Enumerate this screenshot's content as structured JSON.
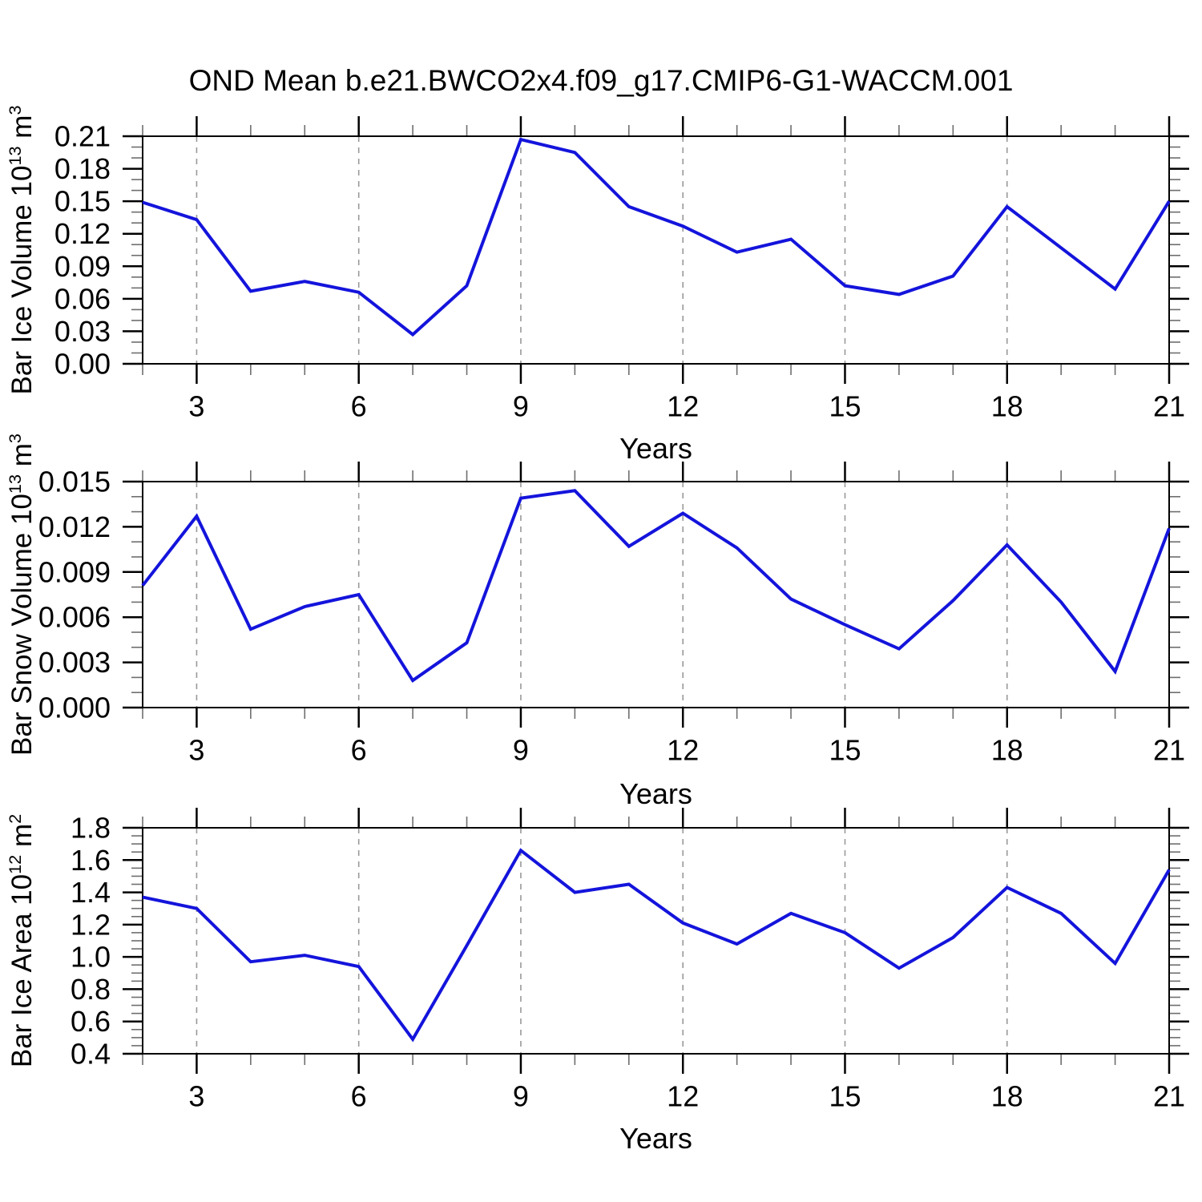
{
  "title": "OND Mean b.e21.BWCO2x4.f09_g17.CMIP6-G1-WACCM.001",
  "style": {
    "line_color": "#1414dc",
    "grid_color": "#999999",
    "axis_color": "#000000",
    "minor_tick_color": "#6e6e6e",
    "background": "#ffffff"
  },
  "chart_data": [
    {
      "type": "line",
      "panel": "bar-ice-volume",
      "ylabel": "Bar Ice Volume 10¹³ m³",
      "ylabel_parts": [
        "Bar Ice Volume 10",
        "13",
        " m",
        "3"
      ],
      "xlabel": "Years",
      "x": [
        2,
        3,
        4,
        5,
        6,
        7,
        8,
        9,
        10,
        11,
        12,
        13,
        14,
        15,
        16,
        17,
        18,
        19,
        20,
        21
      ],
      "values": [
        0.149,
        0.133,
        0.067,
        0.076,
        0.066,
        0.027,
        0.072,
        0.207,
        0.195,
        0.145,
        0.127,
        0.103,
        0.115,
        0.072,
        0.064,
        0.081,
        0.145,
        0.107,
        0.069,
        0.15
      ],
      "ylim": [
        0,
        0.21
      ],
      "ytick_values": [
        0,
        0.03,
        0.06,
        0.09,
        0.12,
        0.15,
        0.18,
        0.21
      ],
      "ytick_labels": [
        "0.00",
        "0.03",
        "0.06",
        "0.09",
        "0.12",
        "0.15",
        "0.18",
        "0.21"
      ],
      "yminor_step": 0.01,
      "xlim": [
        2,
        21
      ],
      "xtick_values": [
        3,
        6,
        9,
        12,
        15,
        18,
        21
      ],
      "xtick_labels": [
        "3",
        "6",
        "9",
        "12",
        "15",
        "18",
        "21"
      ],
      "xminor_step": 1,
      "grid_x": [
        3,
        6,
        9,
        12,
        15,
        18
      ],
      "grid": "vertical-dashed",
      "legend": "none"
    },
    {
      "type": "line",
      "panel": "bar-snow-volume",
      "ylabel": "Bar Snow Volume 10¹³ m³",
      "ylabel_parts": [
        "Bar Snow Volume 10",
        "13",
        " m",
        "3"
      ],
      "xlabel": "Years",
      "x": [
        2,
        3,
        4,
        5,
        6,
        7,
        8,
        9,
        10,
        11,
        12,
        13,
        14,
        15,
        16,
        17,
        18,
        19,
        20,
        21
      ],
      "values": [
        0.0081,
        0.0127,
        0.0052,
        0.0067,
        0.0075,
        0.0018,
        0.0043,
        0.0139,
        0.0144,
        0.0107,
        0.0129,
        0.0106,
        0.0072,
        0.0055,
        0.0039,
        0.0071,
        0.0108,
        0.007,
        0.0024,
        0.0119
      ],
      "ylim": [
        0,
        0.015
      ],
      "ytick_values": [
        0,
        0.003,
        0.006,
        0.009,
        0.012,
        0.015
      ],
      "ytick_labels": [
        "0.000",
        "0.003",
        "0.006",
        "0.009",
        "0.012",
        "0.015"
      ],
      "yminor_step": 0.001,
      "xlim": [
        2,
        21
      ],
      "xtick_values": [
        3,
        6,
        9,
        12,
        15,
        18,
        21
      ],
      "xtick_labels": [
        "3",
        "6",
        "9",
        "12",
        "15",
        "18",
        "21"
      ],
      "xminor_step": 1,
      "grid_x": [
        3,
        6,
        9,
        12,
        15,
        18
      ],
      "grid": "vertical-dashed",
      "legend": "none"
    },
    {
      "type": "line",
      "panel": "bar-ice-area",
      "ylabel": "Bar Ice Area 10¹² m²",
      "ylabel_parts": [
        "Bar Ice Area 10",
        "12",
        " m",
        "2"
      ],
      "xlabel": "Years",
      "x": [
        2,
        3,
        4,
        5,
        6,
        7,
        8,
        9,
        10,
        11,
        12,
        13,
        14,
        15,
        16,
        17,
        18,
        19,
        20,
        21
      ],
      "values": [
        1.37,
        1.3,
        0.97,
        1.01,
        0.94,
        0.49,
        1.07,
        1.66,
        1.4,
        1.45,
        1.21,
        1.08,
        1.27,
        1.15,
        0.93,
        1.12,
        1.43,
        1.27,
        0.96,
        1.54
      ],
      "ylim": [
        0.4,
        1.8
      ],
      "ytick_values": [
        0.4,
        0.6,
        0.8,
        1.0,
        1.2,
        1.4,
        1.6,
        1.8
      ],
      "ytick_labels": [
        "0.4",
        "0.6",
        "0.8",
        "1.0",
        "1.2",
        "1.4",
        "1.6",
        "1.8"
      ],
      "yminor_step": 0.05,
      "xlim": [
        2,
        21
      ],
      "xtick_values": [
        3,
        6,
        9,
        12,
        15,
        18,
        21
      ],
      "xtick_labels": [
        "3",
        "6",
        "9",
        "12",
        "15",
        "18",
        "21"
      ],
      "xminor_step": 1,
      "grid_x": [
        3,
        6,
        9,
        12,
        15,
        18
      ],
      "grid": "vertical-dashed",
      "legend": "none"
    }
  ]
}
